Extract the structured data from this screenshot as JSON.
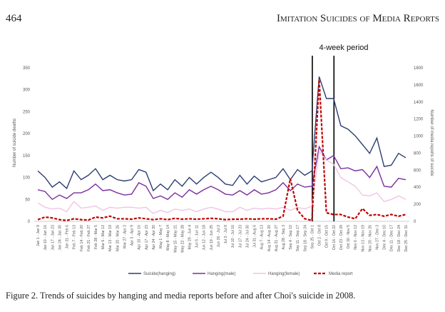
{
  "header": {
    "page_number": "464",
    "running_title": "Imitation Suicides of Media Reports"
  },
  "chart_data": {
    "type": "line",
    "annotation": "4-week period",
    "ylabel": "Number of suicide deaths",
    "y2label": "Number of media reports of suicide",
    "categories": [
      "Jan 1 - Jan 9",
      "Jan 10 - Jan 16",
      "Jan 17 - Jan 23",
      "Jan 24 - Jan 30",
      "Jan 31 - Feb 6",
      "Feb 7 - Feb 13",
      "Feb 14 - Feb 20",
      "Feb 21 - Feb 27",
      "Feb 28 - Mar 5",
      "Mar 6 - Mar 12",
      "Mar 13 - Mar 19",
      "Mar 20 - Mar 26",
      "Mar 27 - Apr 2",
      "Apr 3 - Apr 9",
      "Apr 10 - Apr 16",
      "Apr 17 - Apr 23",
      "Apr 24 - Apr 30",
      "May 1 - May 7",
      "May 8 - May 14",
      "May 15 - May 21",
      "May 22 - May 28",
      "May 29 - Jun 4",
      "Jun 5 - Jun 11",
      "Jun 12 - Jun 18",
      "Jun 19 - Jun 25",
      "Jun 26 - Jul 2",
      "Jul 3 - Jul 9",
      "Jul 10 - Jul 16",
      "Jul 17 - Jul 23",
      "Jul 24 - Jul 30",
      "Jul 31 - Aug 6",
      "Aug 7 - Aug 13",
      "Aug 14 - Aug 20",
      "Aug 21 - Aug 27",
      "Aug 28 - Sep 3",
      "Sep 4 - Sep 10",
      "Sep 11 - Sep 17",
      "Sep 18 - Sep 24",
      "Sep 25 - Oct 1",
      "Oct 2 - Oct 8",
      "Oct 9 - Oct 15",
      "Oct 16 - Oct 22",
      "Oct 23 - Oct 29",
      "Oct 30 - Nov 5",
      "Nov 6 - Nov 12",
      "Nov 13 - Nov 19",
      "Nov 20 - Nov 26",
      "Nov 27 - Dec 3",
      "Dec 4 - Dec 10",
      "Dec 11 - Dec 17",
      "Dec 18 - Dec 24",
      "Dec 25 - Dec 31"
    ],
    "series": [
      {
        "name": "Suicide(hanging)",
        "color": "#2e3d73",
        "values": [
          115,
          100,
          78,
          90,
          75,
          115,
          95,
          105,
          120,
          95,
          105,
          95,
          92,
          95,
          118,
          112,
          70,
          85,
          72,
          95,
          80,
          100,
          85,
          100,
          112,
          100,
          85,
          82,
          105,
          85,
          103,
          90,
          95,
          100,
          120,
          95,
          118,
          105,
          115,
          330,
          280,
          280,
          218,
          210,
          195,
          175,
          155,
          190,
          125,
          128,
          155,
          145
        ]
      },
      {
        "name": "Hanging(male)",
        "color": "#7a2fa0",
        "values": [
          72,
          68,
          50,
          60,
          52,
          65,
          65,
          72,
          85,
          70,
          72,
          65,
          60,
          62,
          88,
          80,
          52,
          58,
          50,
          65,
          55,
          72,
          62,
          72,
          80,
          72,
          62,
          60,
          70,
          60,
          72,
          62,
          65,
          72,
          88,
          70,
          85,
          78,
          80,
          170,
          140,
          150,
          120,
          122,
          115,
          118,
          100,
          125,
          80,
          78,
          98,
          95
        ]
      },
      {
        "name": "Hanging(female)",
        "color": "#f2c4e4",
        "values": [
          42,
          32,
          28,
          30,
          22,
          45,
          30,
          32,
          35,
          25,
          32,
          30,
          32,
          32,
          30,
          32,
          18,
          25,
          20,
          28,
          25,
          28,
          22,
          28,
          32,
          28,
          22,
          22,
          32,
          25,
          30,
          28,
          30,
          28,
          32,
          25,
          32,
          28,
          35,
          160,
          140,
          130,
          100,
          90,
          80,
          60,
          58,
          65,
          45,
          50,
          58,
          50
        ]
      },
      {
        "name": "Media report",
        "color": "#c00000",
        "axis": "y2",
        "dashed": true,
        "values": [
          20,
          50,
          40,
          20,
          10,
          30,
          20,
          15,
          50,
          40,
          60,
          30,
          30,
          25,
          40,
          30,
          20,
          30,
          20,
          35,
          25,
          30,
          25,
          30,
          35,
          30,
          20,
          25,
          25,
          30,
          25,
          30,
          30,
          25,
          60,
          500,
          130,
          30,
          10,
          1660,
          100,
          80,
          80,
          50,
          30,
          150,
          70,
          80,
          60,
          80,
          60,
          80
        ]
      }
    ],
    "ylim": [
      0,
      350
    ],
    "yticks": [
      0,
      50,
      100,
      150,
      200,
      250,
      300,
      350
    ],
    "y2lim": [
      0,
      1800
    ],
    "y2ticks": [
      0,
      200,
      400,
      600,
      800,
      1000,
      1200,
      1400,
      1600,
      1800
    ],
    "grid": false,
    "legend": "bottom"
  },
  "caption": "Figure 2.  Trends of suicides by hanging and media reports before and after Choi's suicide in 2008."
}
